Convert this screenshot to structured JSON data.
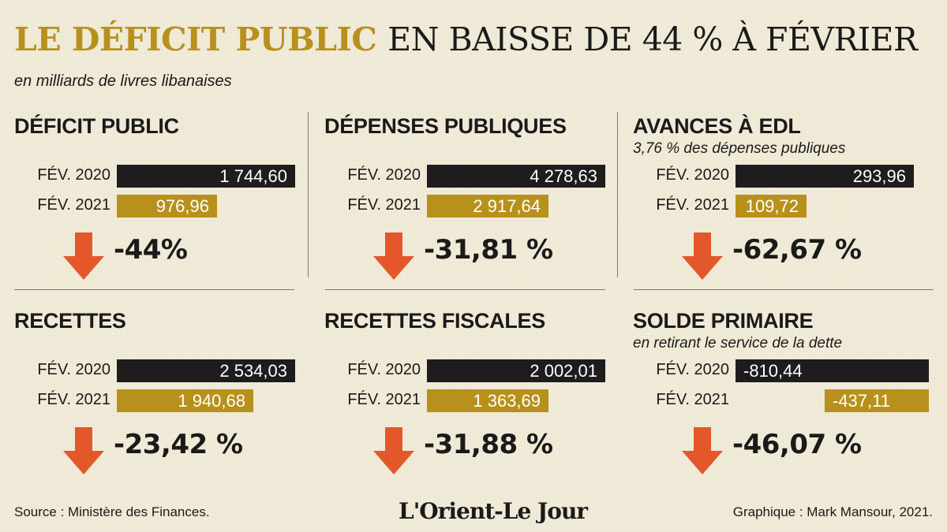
{
  "header": {
    "title_highlight": "LE DÉFICIT PUBLIC",
    "title_rest": "EN BAISSE DE 44 % À FÉVRIER",
    "subtitle": "en milliards de livres libanaises"
  },
  "colors": {
    "year_2020": "#1e1c1c",
    "year_2021": "#b8901c",
    "arrow": "#e4572b",
    "title_accent": "#b8901c"
  },
  "chart_data": [
    {
      "type": "bar",
      "title": "DÉFICIT PUBLIC",
      "note": "",
      "categories": [
        "FÉV. 2020",
        "FÉV. 2021"
      ],
      "values": [
        1744.6,
        976.96
      ],
      "value_labels": [
        "1 744,60",
        "976,96"
      ],
      "change": "-44%"
    },
    {
      "type": "bar",
      "title": "DÉPENSES PUBLIQUES",
      "note": "",
      "categories": [
        "FÉV. 2020",
        "FÉV. 2021"
      ],
      "values": [
        4278.63,
        2917.64
      ],
      "value_labels": [
        "4 278,63",
        "2 917,64"
      ],
      "change": "-31,81 %"
    },
    {
      "type": "bar",
      "title": "AVANCES À EDL",
      "note": "3,76 % des dépenses publiques",
      "categories": [
        "FÉV. 2020",
        "FÉV. 2021"
      ],
      "values": [
        293.96,
        109.72
      ],
      "value_labels": [
        "293,96",
        "109,72"
      ],
      "change": "-62,67 %"
    },
    {
      "type": "bar",
      "title": "RECETTES",
      "note": "",
      "categories": [
        "FÉV. 2020",
        "FÉV. 2021"
      ],
      "values": [
        2534.03,
        1940.68
      ],
      "value_labels": [
        "2 534,03",
        "1 940,68"
      ],
      "change": "-23,42 %"
    },
    {
      "type": "bar",
      "title": "RECETTES FISCALES",
      "note": "",
      "categories": [
        "FÉV. 2020",
        "FÉV. 2021"
      ],
      "values": [
        2002.01,
        1363.69
      ],
      "value_labels": [
        "2 002,01",
        "1 363,69"
      ],
      "change": "-31,88 %"
    },
    {
      "type": "bar",
      "title": "SOLDE PRIMAIRE",
      "note": "en retirant le service de la dette",
      "categories": [
        "FÉV. 2020",
        "FÉV. 2021"
      ],
      "values": [
        -810.44,
        -437.11
      ],
      "value_labels": [
        "-810,44",
        "-437,11"
      ],
      "change": "-46,07 %"
    }
  ],
  "footer": {
    "source": "Source : Ministère des Finances.",
    "logo": "L'Orient-Le Jour",
    "credit": "Graphique : Mark Mansour, 2021."
  }
}
